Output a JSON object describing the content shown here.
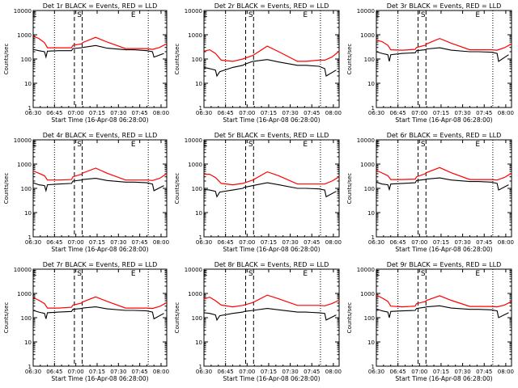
{
  "figure": {
    "x_tick_labels": [
      "06:30",
      "06:45",
      "07:00",
      "07:15",
      "07:30",
      "07:45",
      "08:00"
    ],
    "y_tick_labels": [
      "1",
      "10",
      "100",
      "1000",
      "10000"
    ],
    "ylabel": "Counts/sec",
    "xlabel": "Start Time (16-Apr-08 06:28:00)",
    "series_colors": {
      "events": "#000000",
      "lld": "#ff0000"
    }
  },
  "chart_data": [
    {
      "type": "line",
      "title": "Det 1r BLACK = Events, RED = LLD",
      "xlabel": "Start Time (16-Apr-08 06:28:00)",
      "ylabel": "Counts/sec",
      "x_unit": "minutes after 06:28:00",
      "x_ticks": [
        2,
        17,
        32,
        47,
        62,
        77,
        92
      ],
      "ylim": [
        1,
        10000
      ],
      "yscale": "log",
      "xlim": [
        2,
        96
      ],
      "markers": [
        {
          "label": "E",
          "x": 3
        },
        {
          "label": "S",
          "x": 34.5
        },
        {
          "label": "E",
          "x": 72.5
        }
      ],
      "lld_x": [
        2,
        6,
        10,
        12,
        20,
        29,
        30,
        36,
        37,
        46,
        54,
        67,
        73,
        82,
        86,
        91,
        96
      ],
      "lld_y": [
        880,
        700,
        470,
        290,
        290,
        290,
        370,
        420,
        480,
        780,
        500,
        270,
        270,
        270,
        250,
        300,
        430
      ],
      "events_x": [
        2,
        6,
        10,
        11,
        12,
        20,
        29,
        30,
        36,
        37,
        46,
        54,
        67,
        73,
        82,
        86,
        87,
        94
      ],
      "events_y": [
        250,
        220,
        200,
        120,
        210,
        220,
        220,
        270,
        290,
        300,
        360,
        280,
        240,
        240,
        220,
        200,
        120,
        170
      ]
    },
    {
      "type": "line",
      "title": "Det 2r BLACK = Events, RED = LLD",
      "xlabel": "Start Time (16-Apr-08 06:28:00)",
      "ylabel": "Counts/sec",
      "x_unit": "minutes after 06:28:00",
      "x_ticks": [
        2,
        17,
        32,
        47,
        62,
        77,
        92
      ],
      "ylim": [
        1,
        10000
      ],
      "yscale": "log",
      "xlim": [
        2,
        96
      ],
      "markers": [
        {
          "label": "E",
          "x": 3
        },
        {
          "label": "S",
          "x": 34.5
        },
        {
          "label": "E",
          "x": 72.5
        }
      ],
      "lld_x": [
        2,
        6,
        10,
        14,
        22,
        29,
        36,
        46,
        54,
        67,
        73,
        82,
        86,
        91,
        96
      ],
      "lld_y": [
        210,
        240,
        170,
        90,
        80,
        100,
        140,
        340,
        200,
        80,
        80,
        90,
        90,
        120,
        210
      ],
      "events_x": [
        2,
        6,
        10,
        11,
        13,
        22,
        29,
        30,
        36,
        46,
        54,
        67,
        73,
        82,
        86,
        87,
        94
      ],
      "events_y": [
        45,
        40,
        35,
        20,
        30,
        45,
        55,
        60,
        80,
        95,
        75,
        55,
        55,
        50,
        40,
        20,
        35
      ]
    },
    {
      "type": "line",
      "title": "Det 3r BLACK = Events, RED = LLD",
      "xlabel": "Start Time (16-Apr-08 06:28:00)",
      "ylabel": "Counts/sec",
      "x_unit": "minutes after 06:28:00",
      "x_ticks": [
        2,
        17,
        32,
        47,
        62,
        77,
        92
      ],
      "ylim": [
        1,
        10000
      ],
      "yscale": "log",
      "xlim": [
        2,
        96
      ],
      "markers": [
        {
          "label": "E",
          "x": 3
        },
        {
          "label": "S",
          "x": 34.5
        },
        {
          "label": "E",
          "x": 72.5
        }
      ],
      "lld_x": [
        2,
        6,
        10,
        12,
        20,
        29,
        30,
        36,
        37,
        46,
        54,
        67,
        73,
        82,
        86,
        91,
        96
      ],
      "lld_y": [
        600,
        520,
        370,
        240,
        230,
        250,
        300,
        370,
        420,
        700,
        450,
        240,
        240,
        240,
        230,
        290,
        420
      ],
      "events_x": [
        2,
        6,
        10,
        11,
        12,
        20,
        29,
        30,
        36,
        37,
        46,
        54,
        67,
        73,
        82,
        86,
        87,
        94
      ],
      "events_y": [
        200,
        170,
        150,
        80,
        150,
        170,
        180,
        220,
        240,
        260,
        290,
        230,
        200,
        200,
        190,
        170,
        80,
        150
      ]
    },
    {
      "type": "line",
      "title": "Det 4r BLACK = Events, RED = LLD",
      "xlabel": "Start Time (16-Apr-08 06:28:00)",
      "ylabel": "Counts/sec",
      "x_unit": "minutes after 06:28:00",
      "x_ticks": [
        2,
        17,
        32,
        47,
        62,
        77,
        92
      ],
      "ylim": [
        1,
        10000
      ],
      "yscale": "log",
      "xlim": [
        2,
        96
      ],
      "markers": [
        {
          "label": "E",
          "x": 3
        },
        {
          "label": "S",
          "x": 34.5
        },
        {
          "label": "E",
          "x": 72.5
        }
      ],
      "lld_x": [
        2,
        6,
        10,
        12,
        20,
        29,
        30,
        36,
        37,
        46,
        54,
        67,
        73,
        82,
        86,
        91,
        96
      ],
      "lld_y": [
        520,
        420,
        330,
        220,
        220,
        230,
        300,
        380,
        430,
        680,
        420,
        220,
        220,
        220,
        210,
        260,
        400
      ],
      "events_x": [
        2,
        6,
        10,
        11,
        12,
        20,
        29,
        30,
        36,
        37,
        46,
        54,
        67,
        73,
        82,
        86,
        87,
        94
      ],
      "events_y": [
        170,
        140,
        130,
        80,
        140,
        150,
        160,
        200,
        220,
        230,
        260,
        210,
        180,
        180,
        170,
        150,
        80,
        130
      ]
    },
    {
      "type": "line",
      "title": "Det 5r BLACK = Events, RED = LLD",
      "xlabel": "Start Time (16-Apr-08 06:28:00)",
      "ylabel": "Counts/sec",
      "x_unit": "minutes after 06:28:00",
      "x_ticks": [
        2,
        17,
        32,
        47,
        62,
        77,
        92
      ],
      "ylim": [
        1,
        10000
      ],
      "yscale": "log",
      "xlim": [
        2,
        96
      ],
      "markers": [
        {
          "label": "E",
          "x": 3
        },
        {
          "label": "S",
          "x": 34.5
        },
        {
          "label": "E",
          "x": 72.5
        }
      ],
      "lld_x": [
        2,
        6,
        10,
        14,
        22,
        29,
        36,
        46,
        54,
        67,
        73,
        82,
        86,
        91,
        96
      ],
      "lld_y": [
        380,
        380,
        280,
        160,
        140,
        160,
        220,
        480,
        330,
        150,
        150,
        150,
        150,
        200,
        300
      ],
      "events_x": [
        2,
        6,
        10,
        11,
        13,
        22,
        29,
        30,
        36,
        46,
        54,
        67,
        73,
        82,
        86,
        87,
        94
      ],
      "events_y": [
        90,
        85,
        75,
        45,
        70,
        85,
        100,
        110,
        130,
        170,
        140,
        100,
        100,
        95,
        85,
        45,
        75
      ]
    },
    {
      "type": "line",
      "title": "Det 6r BLACK = Events, RED = LLD",
      "xlabel": "Start Time (16-Apr-08 06:28:00)",
      "ylabel": "Counts/sec",
      "x_unit": "minutes after 06:28:00",
      "x_ticks": [
        2,
        17,
        32,
        47,
        62,
        77,
        92
      ],
      "ylim": [
        1,
        10000
      ],
      "yscale": "log",
      "xlim": [
        2,
        96
      ],
      "markers": [
        {
          "label": "E",
          "x": 3
        },
        {
          "label": "S",
          "x": 34.5
        },
        {
          "label": "E",
          "x": 72.5
        }
      ],
      "lld_x": [
        2,
        6,
        10,
        12,
        20,
        29,
        30,
        36,
        37,
        46,
        54,
        67,
        73,
        82,
        86,
        91,
        96
      ],
      "lld_y": [
        550,
        430,
        330,
        230,
        230,
        240,
        300,
        400,
        450,
        720,
        440,
        230,
        230,
        230,
        220,
        280,
        420
      ],
      "events_x": [
        2,
        6,
        10,
        11,
        12,
        20,
        29,
        30,
        36,
        37,
        46,
        54,
        67,
        73,
        82,
        86,
        87,
        94
      ],
      "events_y": [
        180,
        150,
        140,
        90,
        150,
        160,
        170,
        210,
        230,
        240,
        270,
        220,
        190,
        190,
        180,
        160,
        85,
        140
      ]
    },
    {
      "type": "line",
      "title": "Det 7r BLACK = Events, RED = LLD",
      "xlabel": "Start Time (16-Apr-08 06:28:00)",
      "ylabel": "Counts/sec",
      "x_unit": "minutes after 06:28:00",
      "x_ticks": [
        2,
        17,
        32,
        47,
        62,
        77,
        92
      ],
      "ylim": [
        1,
        10000
      ],
      "yscale": "log",
      "xlim": [
        2,
        96
      ],
      "markers": [
        {
          "label": "E",
          "x": 3
        },
        {
          "label": "S",
          "x": 34.5
        },
        {
          "label": "E",
          "x": 72.5
        }
      ],
      "lld_x": [
        2,
        6,
        10,
        12,
        20,
        29,
        30,
        36,
        37,
        46,
        54,
        67,
        73,
        82,
        86,
        91,
        96
      ],
      "lld_y": [
        680,
        520,
        380,
        250,
        250,
        270,
        330,
        400,
        450,
        720,
        470,
        250,
        250,
        250,
        240,
        290,
        420
      ],
      "events_x": [
        2,
        6,
        10,
        11,
        12,
        20,
        29,
        30,
        36,
        37,
        46,
        54,
        67,
        73,
        82,
        86,
        87,
        94
      ],
      "events_y": [
        200,
        170,
        150,
        90,
        160,
        170,
        180,
        220,
        240,
        250,
        280,
        230,
        200,
        200,
        190,
        170,
        90,
        150
      ]
    },
    {
      "type": "line",
      "title": "Det 8r BLACK = Events, RED = LLD",
      "xlabel": "Start Time (16-Apr-08 06:28:00)",
      "ylabel": "Counts/sec",
      "x_unit": "minutes after 06:28:00",
      "x_ticks": [
        2,
        17,
        32,
        47,
        62,
        77,
        92
      ],
      "ylim": [
        1,
        10000
      ],
      "yscale": "log",
      "xlim": [
        2,
        96
      ],
      "markers": [
        {
          "label": "E",
          "x": 3
        },
        {
          "label": "S",
          "x": 34.5
        },
        {
          "label": "E",
          "x": 72.5
        }
      ],
      "lld_x": [
        2,
        6,
        10,
        14,
        22,
        29,
        36,
        46,
        54,
        67,
        73,
        82,
        86,
        91,
        96
      ],
      "lld_y": [
        600,
        700,
        500,
        330,
        280,
        320,
        420,
        850,
        600,
        320,
        320,
        320,
        310,
        380,
        520
      ],
      "events_x": [
        2,
        6,
        10,
        11,
        13,
        22,
        29,
        30,
        36,
        46,
        54,
        67,
        73,
        82,
        86,
        87,
        94
      ],
      "events_y": [
        160,
        150,
        130,
        80,
        120,
        150,
        170,
        180,
        200,
        240,
        210,
        170,
        170,
        160,
        150,
        80,
        130
      ]
    },
    {
      "type": "line",
      "title": "Det 9r BLACK = Events, RED = LLD",
      "xlabel": "Start Time (16-Apr-08 06:28:00)",
      "ylabel": "Counts/sec",
      "x_unit": "minutes after 06:28:00",
      "x_ticks": [
        2,
        17,
        32,
        47,
        62,
        77,
        92
      ],
      "ylim": [
        1,
        10000
      ],
      "yscale": "log",
      "xlim": [
        2,
        96
      ],
      "markers": [
        {
          "label": "E",
          "x": 3
        },
        {
          "label": "S",
          "x": 34.5
        },
        {
          "label": "E",
          "x": 72.5
        }
      ],
      "lld_x": [
        2,
        6,
        10,
        12,
        20,
        29,
        30,
        36,
        37,
        46,
        54,
        67,
        73,
        82,
        86,
        91,
        96
      ],
      "lld_y": [
        850,
        650,
        470,
        300,
        280,
        300,
        380,
        460,
        520,
        800,
        520,
        290,
        290,
        290,
        280,
        330,
        460
      ],
      "events_x": [
        2,
        6,
        10,
        11,
        12,
        20,
        29,
        30,
        36,
        37,
        46,
        54,
        67,
        73,
        82,
        86,
        87,
        94
      ],
      "events_y": [
        230,
        190,
        170,
        100,
        180,
        190,
        200,
        240,
        270,
        280,
        310,
        250,
        220,
        220,
        210,
        190,
        100,
        160
      ]
    }
  ]
}
